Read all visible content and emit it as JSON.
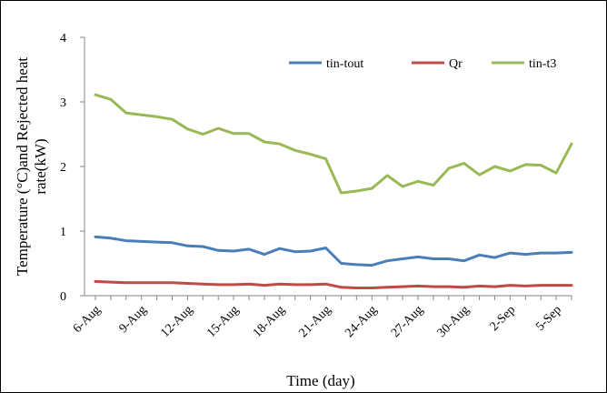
{
  "chart_data": {
    "type": "line",
    "xlabel": "Time (day)",
    "ylabel_lines": [
      "Temperature (°C)and Rejected heat",
      "rate(kW)"
    ],
    "ylim": [
      0,
      4
    ],
    "yticks": [
      "0",
      "1",
      "2",
      "3",
      "4"
    ],
    "grid": false,
    "legend_position": "top-right",
    "x_tick_labels": [
      "6-Aug",
      "9-Aug",
      "12-Aug",
      "15-Aug",
      "18-Aug",
      "21-Aug",
      "24-Aug",
      "27-Aug",
      "30-Aug",
      "2-Sep",
      "5-Sep"
    ],
    "x": [
      "6-Aug",
      "7-Aug",
      "8-Aug",
      "9-Aug",
      "10-Aug",
      "11-Aug",
      "12-Aug",
      "13-Aug",
      "14-Aug",
      "15-Aug",
      "16-Aug",
      "17-Aug",
      "18-Aug",
      "19-Aug",
      "20-Aug",
      "21-Aug",
      "22-Aug",
      "23-Aug",
      "24-Aug",
      "25-Aug",
      "26-Aug",
      "27-Aug",
      "28-Aug",
      "29-Aug",
      "30-Aug",
      "31-Aug",
      "1-Sep",
      "2-Sep",
      "3-Sep",
      "4-Sep",
      "5-Sep",
      "6-Sep"
    ],
    "series": [
      {
        "name": "tin-tout",
        "color": "#4a7ebb",
        "values": [
          0.91,
          0.89,
          0.85,
          0.84,
          0.83,
          0.82,
          0.77,
          0.76,
          0.7,
          0.69,
          0.72,
          0.64,
          0.73,
          0.68,
          0.69,
          0.74,
          0.5,
          0.48,
          0.47,
          0.54,
          0.57,
          0.6,
          0.57,
          0.57,
          0.54,
          0.63,
          0.59,
          0.66,
          0.64,
          0.66,
          0.66,
          0.67
        ]
      },
      {
        "name": "Qr",
        "color": "#be4b48",
        "values": [
          0.22,
          0.21,
          0.2,
          0.2,
          0.2,
          0.2,
          0.19,
          0.18,
          0.17,
          0.17,
          0.18,
          0.16,
          0.18,
          0.17,
          0.17,
          0.18,
          0.13,
          0.12,
          0.12,
          0.13,
          0.14,
          0.15,
          0.14,
          0.14,
          0.13,
          0.15,
          0.14,
          0.16,
          0.15,
          0.16,
          0.16,
          0.16
        ]
      },
      {
        "name": "tin-t3",
        "color": "#98b954",
        "values": [
          3.11,
          3.04,
          2.83,
          2.8,
          2.77,
          2.73,
          2.58,
          2.5,
          2.59,
          2.51,
          2.51,
          2.38,
          2.35,
          2.25,
          2.19,
          2.12,
          1.59,
          1.62,
          1.66,
          1.86,
          1.69,
          1.77,
          1.71,
          1.97,
          2.05,
          1.87,
          2.0,
          1.93,
          2.03,
          2.02,
          1.9,
          2.35
        ]
      }
    ]
  }
}
